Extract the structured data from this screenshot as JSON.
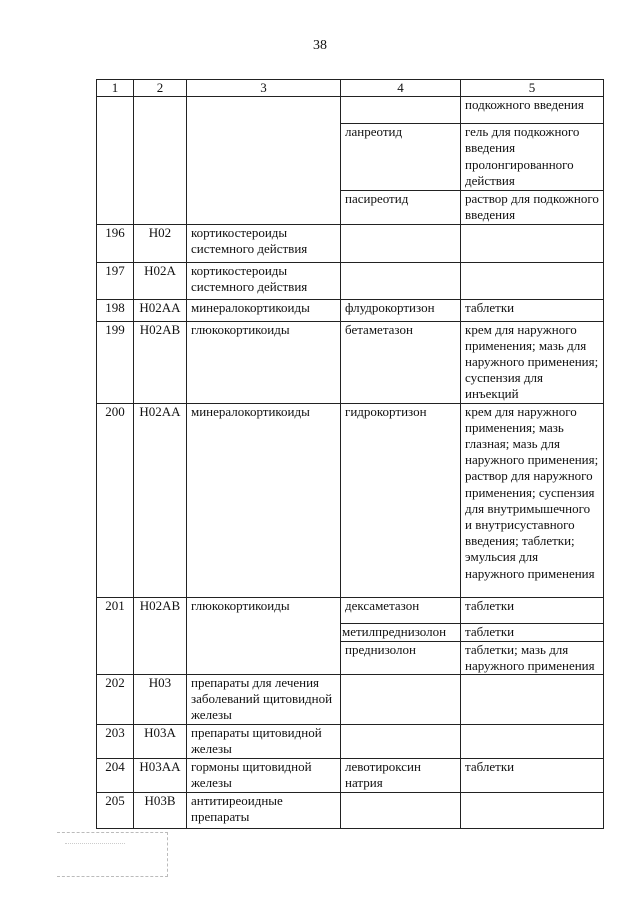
{
  "page_number": "38",
  "header": [
    "1",
    "2",
    "3",
    "4",
    "5"
  ],
  "cont": [
    {
      "c4": "",
      "c5": "подкожного введения"
    },
    {
      "c4": "ланреотид",
      "c5": "гель для подкожного введения пролонгированного действия"
    },
    {
      "c4": "пасиреотид",
      "c5": "раствор для подкожного введения"
    }
  ],
  "rows": {
    "r196": {
      "n": "196",
      "code": "H02",
      "group": "кортикостероиды системного действия",
      "drug": "",
      "form": ""
    },
    "r197": {
      "n": "197",
      "code": "H02A",
      "group": "кортикостероиды системного действия",
      "drug": "",
      "form": ""
    },
    "r198": {
      "n": "198",
      "code": "H02AA",
      "group": "минералокортикоиды",
      "drug": "флудрокортизон",
      "form": "таблетки"
    },
    "r199": {
      "n": "199",
      "code": "H02AB",
      "group": "глюкокортикоиды",
      "drug": "бетаметазон",
      "form": "крем для наружного применения; мазь для наружного применения; суспензия для инъекций"
    },
    "r200": {
      "n": "200",
      "code": "H02AA",
      "group": "минералокортикоиды",
      "drug": "гидрокортизон",
      "form": "крем для наружного применения; мазь глазная; мазь для наружного применения; раствор для наружного применения; суспензия для внутримышечного и внутрисуставного введения; таблетки; эмульсия для наружного применения"
    },
    "r201": {
      "n": "201",
      "code": "H02AB",
      "group": "глюкокортикоиды",
      "sub": [
        {
          "drug": "дексаметазон",
          "form": "таблетки"
        },
        {
          "drug": "метилпреднизолон",
          "form": "таблетки"
        },
        {
          "drug": "преднизолон",
          "form": "таблетки; мазь для наружного применения"
        }
      ]
    },
    "r202": {
      "n": "202",
      "code": "H03",
      "group": "препараты для лечения заболеваний щитовидной железы",
      "drug": "",
      "form": ""
    },
    "r203": {
      "n": "203",
      "code": "H03A",
      "group": "препараты щитовидной железы",
      "drug": "",
      "form": ""
    },
    "r204": {
      "n": "204",
      "code": "H03AA",
      "group": "гормоны щитовидной железы",
      "drug": "левотироксин натрия",
      "form": "таблетки"
    },
    "r205": {
      "n": "205",
      "code": "H03B",
      "group": "антитиреоидные препараты",
      "drug": "",
      "form": ""
    }
  }
}
